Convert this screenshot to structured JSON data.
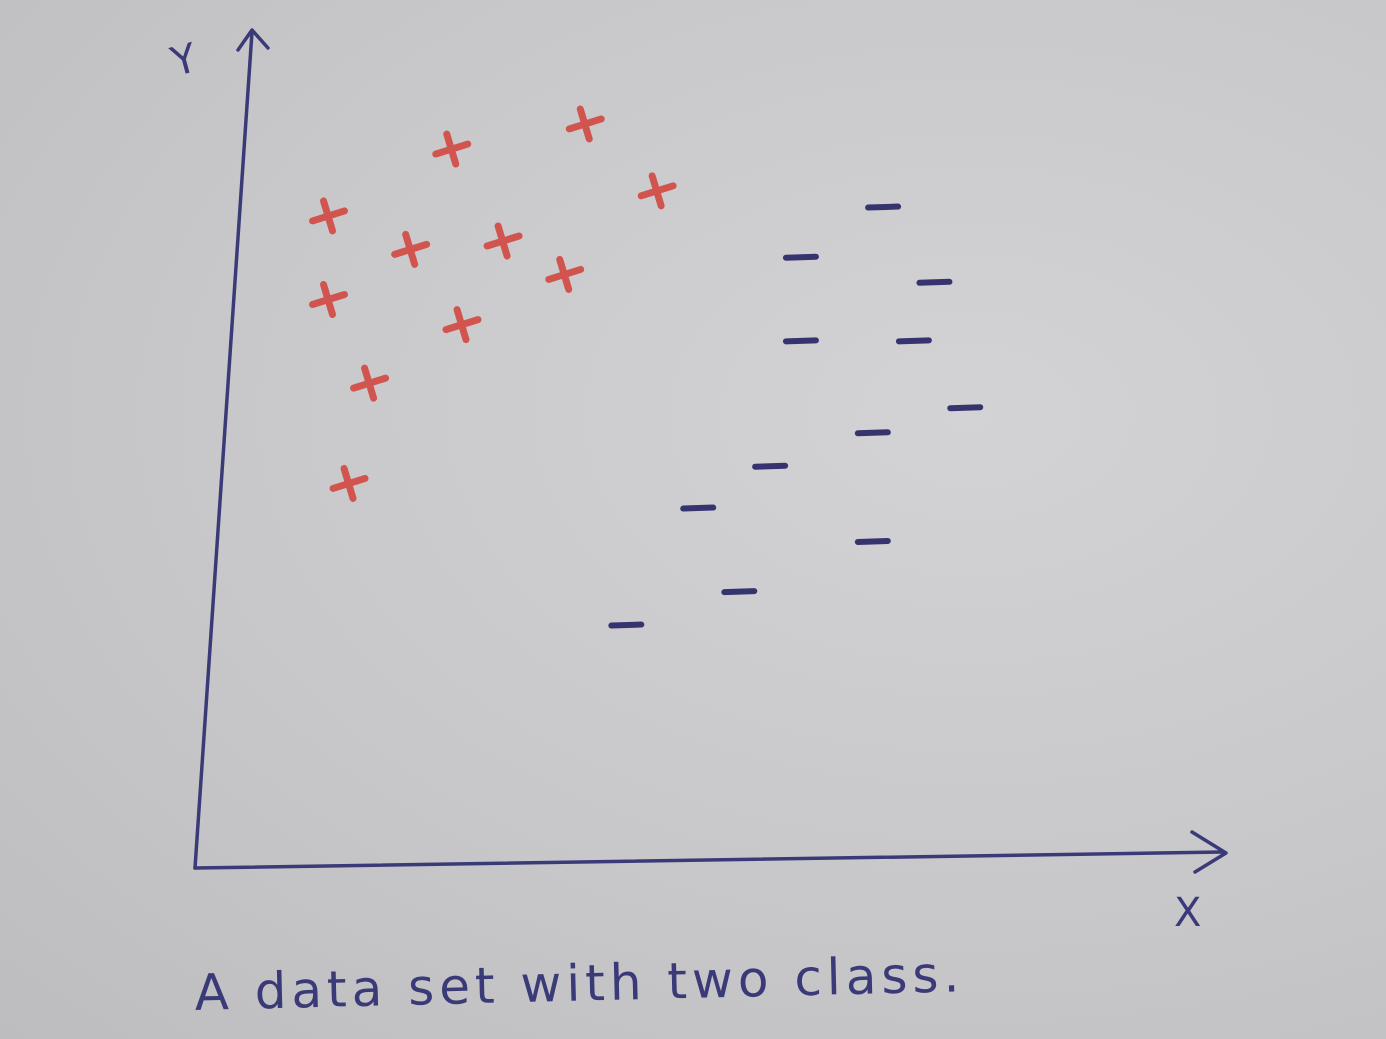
{
  "chart_data": {
    "type": "scatter",
    "title": "A data set with two class.",
    "xlabel": "X",
    "ylabel": "Y",
    "xlim": [
      0,
      100
    ],
    "ylim": [
      0,
      100
    ],
    "grid": false,
    "series": [
      {
        "marker": "+",
        "color": "#d1554e",
        "points": [
          [
            13,
            78
          ],
          [
            21,
            74
          ],
          [
            25,
            86
          ],
          [
            30,
            75
          ],
          [
            38,
            89
          ],
          [
            45,
            81
          ],
          [
            36,
            71
          ],
          [
            13,
            68
          ],
          [
            26,
            65
          ],
          [
            17,
            58
          ],
          [
            15,
            46
          ]
        ]
      },
      {
        "marker": "-",
        "color": "#36346e",
        "points": [
          [
            67,
            79
          ],
          [
            59,
            73
          ],
          [
            72,
            70
          ],
          [
            59,
            63
          ],
          [
            70,
            63
          ],
          [
            75,
            55
          ],
          [
            66,
            52
          ],
          [
            56,
            48
          ],
          [
            49,
            43
          ],
          [
            66,
            39
          ],
          [
            53,
            33
          ],
          [
            42,
            29
          ]
        ]
      }
    ]
  }
}
